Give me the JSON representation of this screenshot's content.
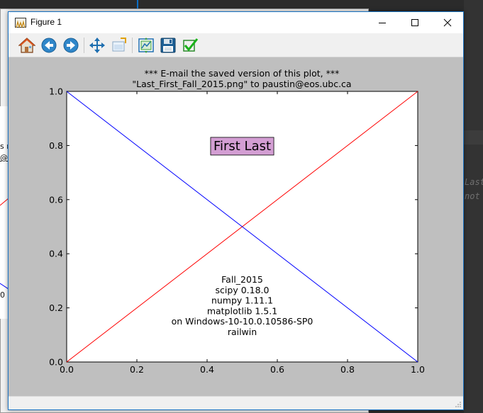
{
  "window": {
    "title": "Figure 1",
    "controls": [
      "minimize",
      "maximize",
      "close"
    ]
  },
  "toolbar": {
    "buttons": [
      {
        "name": "home",
        "icon": "home-icon"
      },
      {
        "name": "back",
        "icon": "arrow-left-icon"
      },
      {
        "name": "forward",
        "icon": "arrow-right-icon"
      },
      {
        "name": "pan",
        "icon": "move-icon"
      },
      {
        "name": "zoom",
        "icon": "zoom-rect-icon"
      },
      {
        "name": "subplots",
        "icon": "subplots-icon"
      },
      {
        "name": "save",
        "icon": "floppy-icon"
      },
      {
        "name": "check",
        "icon": "checkmark-icon"
      }
    ]
  },
  "background": {
    "left_snippets": [
      "s r",
      "@",
      "0"
    ],
    "right_snippets": [
      "Last",
      "not"
    ]
  },
  "chart_data": {
    "type": "line",
    "title_lines": [
      "*** E-mail the saved version of this plot, ***",
      "\"Last_First_Fall_2015.png\" to paustin@eos.ubc.ca"
    ],
    "xlim": [
      0.0,
      1.0
    ],
    "ylim": [
      0.0,
      1.0
    ],
    "x_ticks": [
      "0.0",
      "0.2",
      "0.4",
      "0.6",
      "0.8",
      "1.0"
    ],
    "y_ticks": [
      "0.0",
      "0.2",
      "0.4",
      "0.6",
      "0.8",
      "1.0"
    ],
    "grid": false,
    "series": [
      {
        "color": "#ff0000",
        "x": [
          0.0,
          1.0
        ],
        "y": [
          0.0,
          1.0
        ]
      },
      {
        "color": "#0000ff",
        "x": [
          0.0,
          1.0
        ],
        "y": [
          1.0,
          0.0
        ]
      }
    ],
    "annotation_box": {
      "text": "First Last",
      "x": 0.5,
      "y": 0.8,
      "facecolor": "#d39ed3"
    },
    "info_lines": [
      "Fall_2015",
      "scipy 0.18.0",
      "numpy 1.11.1",
      "matplotlib 1.5.1",
      "on Windows-10-10.0.10586-SP0",
      "railwin"
    ]
  }
}
